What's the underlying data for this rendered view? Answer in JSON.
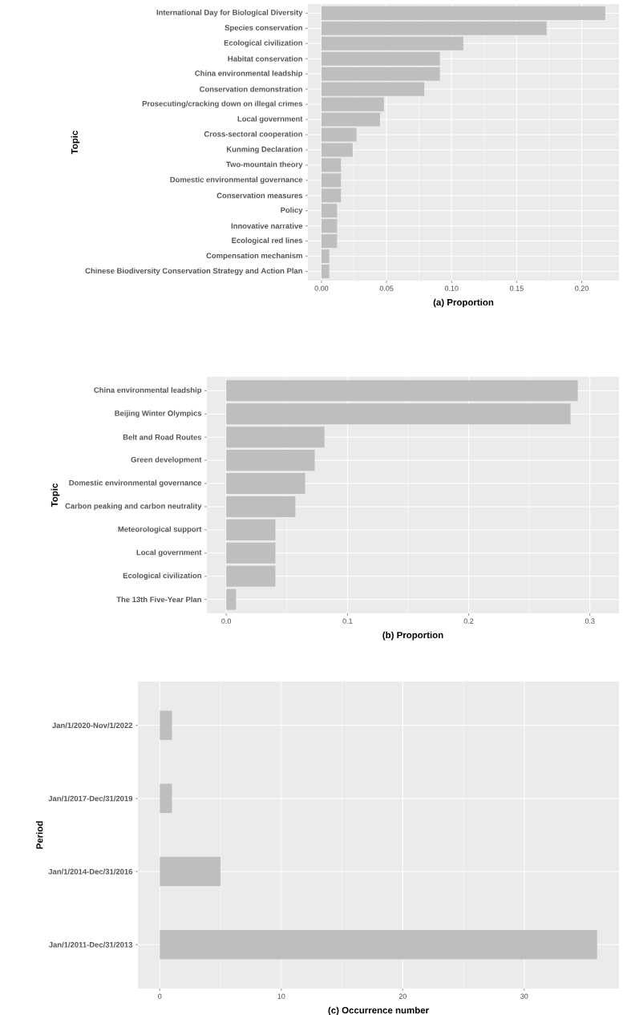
{
  "chart_data": [
    {
      "type": "bar",
      "orientation": "horizontal",
      "xlabel": "(a) Proportion",
      "ylabel": "Topic",
      "color": "#bebebe",
      "grid": true,
      "categories": [
        "International Day for Biological Diversity",
        "Species conservation",
        "Ecological civilization",
        "Habitat conservation",
        "China environmental leadship",
        "Conservation demonstration",
        "Prosecuting/cracking down on illegal crimes",
        "Local government",
        "Cross-sectoral cooperation",
        "Kunming Declaration",
        "Two-mountain theory",
        "Domestic environmental governance",
        "Conservation measures",
        "Policy",
        "Innovative narrative",
        "Ecological red lines",
        "Compensation mechanism",
        "Chinese Biodiversity Conservation Strategy and Action Plan"
      ],
      "values": [
        0.218,
        0.173,
        0.109,
        0.091,
        0.091,
        0.079,
        0.048,
        0.045,
        0.027,
        0.024,
        0.015,
        0.015,
        0.015,
        0.012,
        0.012,
        0.012,
        0.006,
        0.006
      ],
      "xlim": [
        -0.0104,
        0.2286
      ],
      "xticks": [
        {
          "value": 0,
          "label": "0.00"
        },
        {
          "value": 0.05,
          "label": "0.05"
        },
        {
          "value": 0.1,
          "label": "0.10"
        },
        {
          "value": 0.15,
          "label": "0.15"
        },
        {
          "value": 0.2,
          "label": "0.20"
        }
      ]
    },
    {
      "type": "bar",
      "orientation": "horizontal",
      "xlabel": "(b) Proportion",
      "ylabel": "Topic",
      "color": "#bebebe",
      "grid": true,
      "categories": [
        "China environmental leadship",
        "Beijing Winter Olympics",
        "Belt and Road Routes",
        "Green development",
        "Domestic environmental governance",
        "Carbon peaking and carbon neutrality",
        "Meteorological support",
        "Local government",
        "Ecological civilization",
        "The 13th Five-Year Plan"
      ],
      "values": [
        0.29,
        0.284,
        0.081,
        0.073,
        0.065,
        0.057,
        0.0405,
        0.0405,
        0.0405,
        0.008
      ],
      "xlim": [
        -0.016,
        0.324
      ],
      "xticks": [
        {
          "value": 0,
          "label": "0.0"
        },
        0.1,
        0.2,
        0.3
      ]
    },
    {
      "type": "bar",
      "orientation": "horizontal",
      "xlabel": "(c) Occurrence number",
      "ylabel": "Period",
      "color": "#bebebe",
      "grid": true,
      "categories": [
        "Jan/1/2020-Nov/1/2022",
        "Jan/1/2017-Dec/31/2019",
        "Jan/1/2014-Dec/31/2016",
        "Jan/1/2011-Dec/31/2013"
      ],
      "values": [
        1,
        1,
        5,
        36
      ],
      "xlim": [
        -1.8,
        37.8
      ],
      "xticks": [
        0,
        10,
        20,
        30
      ]
    }
  ]
}
